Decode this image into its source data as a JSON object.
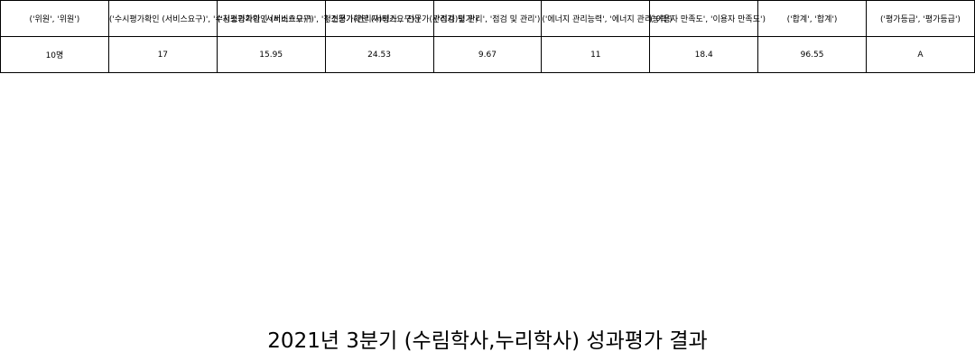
{
  "table": {
    "headers": [
      "('위원', '위원')",
      "('수시평가확인 (서비스요구)', '수시평가확인 (서비스요구)')",
      "('청소평가확인 (서비스요구)', '청소평가확인 (서비스요구)')",
      "('전문가(관리자)평가', '전문가(관리자)평가')",
      "('점검 및 관리', '점검 및 관리')",
      "('에너지 관리능력', '에너지 관리능력')",
      "('이용자 만족도', '이용자 만족도')",
      "('합계', '합계')",
      "('평가등급', '평가등급')"
    ],
    "rows": [
      [
        "10명",
        "17",
        "15.95",
        "24.53",
        "9.67",
        "11",
        "18.4",
        "96.55",
        "A"
      ]
    ]
  },
  "caption": "2021년 3분기 (수림학사,누리학사) 성과평가 결과"
}
